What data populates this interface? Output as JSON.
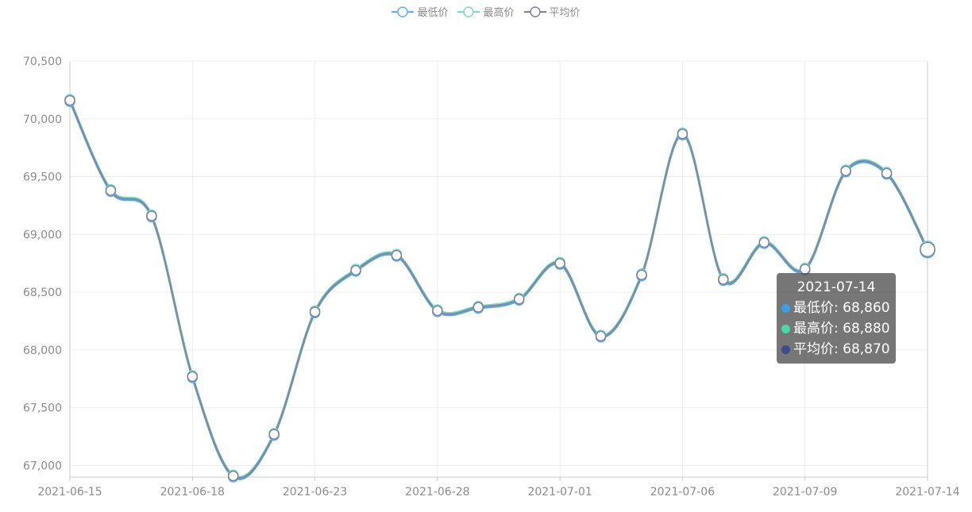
{
  "legend": {
    "items": [
      {
        "label": "最低价",
        "color": "#5ab1ef"
      },
      {
        "label": "最高价",
        "color": "#78e0c2"
      },
      {
        "label": "平均价",
        "color": "#7f7f9c"
      }
    ]
  },
  "tooltip": {
    "title": "2021-07-14",
    "rows": [
      {
        "text": "最低价: 68,860",
        "color": "#3aa0e6"
      },
      {
        "text": "最高价: 68,880",
        "color": "#4fd6a8"
      },
      {
        "text": "平均价: 68,870",
        "color": "#3d4a8c"
      }
    ]
  },
  "chart_data": {
    "type": "line",
    "smooth": true,
    "x": [
      "2021-06-15",
      "2021-06-16",
      "2021-06-17",
      "2021-06-18",
      "2021-06-19",
      "2021-06-20",
      "2021-06-23",
      "2021-06-24",
      "2021-06-25",
      "2021-06-28",
      "2021-06-29",
      "2021-06-30",
      "2021-07-01",
      "2021-07-02",
      "2021-07-05",
      "2021-07-06",
      "2021-07-07",
      "2021-07-08",
      "2021-07-09",
      "2021-07-12",
      "2021-07-13",
      "2021-07-14"
    ],
    "x_tick_labels": [
      "2021-06-15",
      "2021-06-18",
      "2021-06-23",
      "2021-06-28",
      "2021-07-01",
      "2021-07-06",
      "2021-07-09",
      "2021-07-14"
    ],
    "x_tick_indices": [
      0,
      3,
      6,
      9,
      12,
      15,
      18,
      21
    ],
    "y_tick_labels": [
      "67,000",
      "67,500",
      "68,000",
      "68,500",
      "69,000",
      "69,500",
      "70,000",
      "70,500"
    ],
    "ylim": [
      66900,
      70500
    ],
    "grid": true,
    "legend_position": "top-center",
    "series": [
      {
        "name": "最低价",
        "color": "#5ab1ef",
        "values": [
          70150,
          69370,
          69150,
          67760,
          66900,
          67260,
          68320,
          68680,
          68810,
          68330,
          68360,
          68430,
          68740,
          68110,
          68640,
          69860,
          68600,
          68920,
          68690,
          69540,
          69520,
          68860
        ]
      },
      {
        "name": "最高价",
        "color": "#78e0c2",
        "values": [
          70170,
          69390,
          69170,
          67780,
          66920,
          67280,
          68340,
          68700,
          68830,
          68350,
          68380,
          68450,
          68760,
          68130,
          68660,
          69880,
          68620,
          68940,
          68710,
          69560,
          69540,
          68880
        ]
      },
      {
        "name": "平均价",
        "color": "#7f7f9c",
        "values": [
          70160,
          69380,
          69160,
          67770,
          66910,
          67270,
          68330,
          68690,
          68820,
          68340,
          68370,
          68440,
          68750,
          68120,
          68650,
          69870,
          68610,
          68930,
          68700,
          69550,
          69530,
          68870
        ]
      }
    ]
  }
}
